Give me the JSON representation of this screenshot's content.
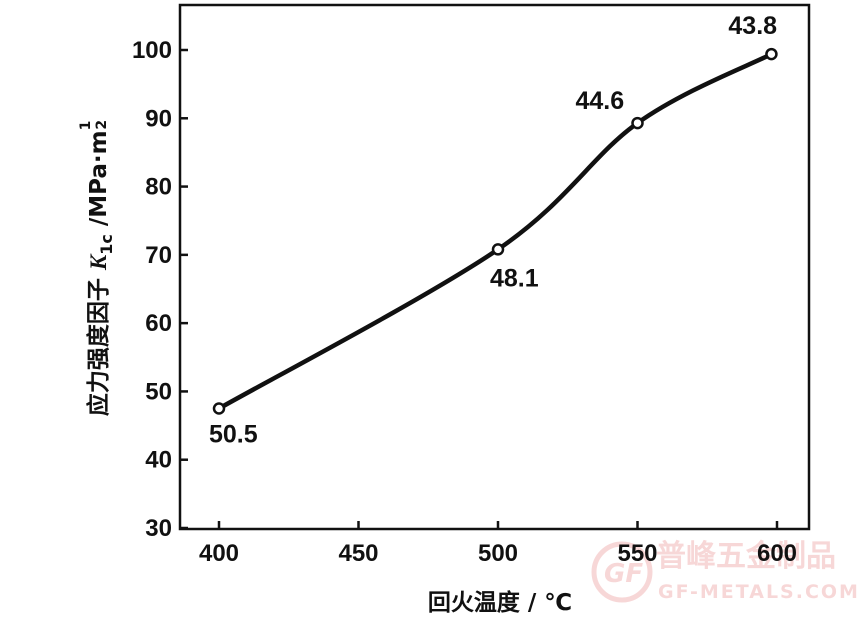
{
  "chart_data": {
    "type": "line",
    "xlabel": "回火温度 / ℃",
    "ylabel": {
      "prefix": "应力强度因子 ",
      "symbol": "K",
      "subscript": "1c",
      "unit": " /MPa·m",
      "exp_num": "1",
      "exp_den": "2"
    },
    "xlim": [
      380,
      612
    ],
    "ylim": [
      30,
      107
    ],
    "xticks": [
      400,
      450,
      500,
      550,
      600
    ],
    "yticks": [
      30,
      40,
      50,
      60,
      70,
      80,
      90,
      100
    ],
    "grid": false,
    "series": [
      {
        "x": [
          400,
          500,
          550,
          598
        ],
        "y": [
          47.5,
          70.8,
          89.3,
          99.4
        ],
        "labels": [
          "50.5",
          "48.1",
          "44.6",
          "43.8"
        ]
      }
    ]
  },
  "watermark": {
    "logo_text": "GF",
    "text_cn": "普峰五金制品",
    "text_en": "GF-METALS.COM",
    "color": "#f2b8b8"
  }
}
